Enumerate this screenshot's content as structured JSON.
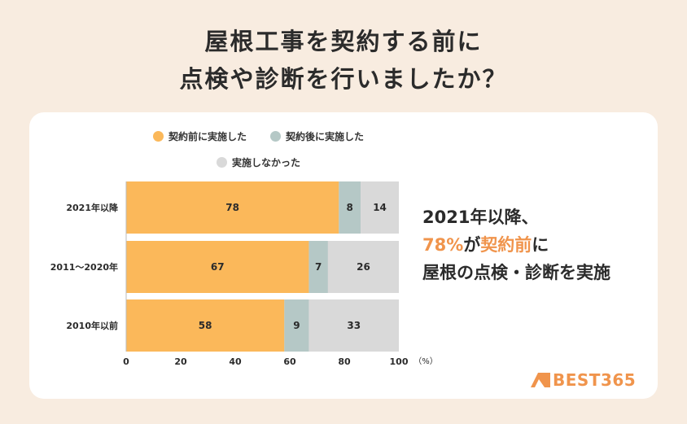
{
  "title": {
    "line1": "屋根工事を契約する前に",
    "line2": "点検や診断を行いましたか？"
  },
  "legend": [
    {
      "label": "契約前に実施した",
      "color": "#fbb85a"
    },
    {
      "label": "契約後に実施した",
      "color": "#b5c8c6"
    },
    {
      "label": "実施しなかった",
      "color": "#d9d9d9"
    }
  ],
  "chart_data": {
    "type": "bar",
    "orientation": "horizontal",
    "stacked": true,
    "categories": [
      "2021年以降",
      "2011～2020年",
      "2010年以前"
    ],
    "series": [
      {
        "name": "契約前に実施した",
        "values": [
          78,
          67,
          58
        ],
        "color": "#fbb85a"
      },
      {
        "name": "契約後に実施した",
        "values": [
          8,
          7,
          9
        ],
        "color": "#b5c8c6"
      },
      {
        "name": "実施しなかった",
        "values": [
          14,
          26,
          33
        ],
        "color": "#d9d9d9"
      }
    ],
    "xlim": [
      0,
      100
    ],
    "xticks": [
      "0",
      "20",
      "40",
      "60",
      "80",
      "100"
    ],
    "xunit": "（%）",
    "legend_position": "top"
  },
  "callout": {
    "line1": "2021年以降、",
    "highlight1": "78%",
    "mid": "が",
    "highlight2": "契約前",
    "end": "に",
    "line3": "屋根の点検・診断を実施"
  },
  "logo": {
    "text": "BEST365",
    "color": "#f0944c"
  }
}
